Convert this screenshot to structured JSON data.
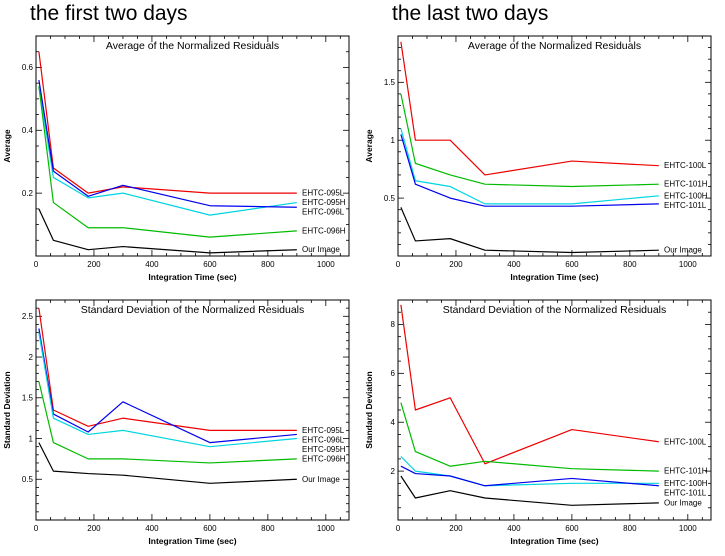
{
  "headers": {
    "left": "the first two days",
    "right": "the last two days"
  },
  "chart_data": [
    {
      "type": "line",
      "title": "Average of the Normalized Residuals",
      "xlabel": "Integration Time (sec)",
      "ylabel": "Average",
      "xlim": [
        0,
        1080
      ],
      "ylim": [
        0,
        0.7
      ],
      "x": [
        10,
        60,
        180,
        300,
        600,
        900
      ],
      "xticks": [
        0,
        200,
        400,
        600,
        800,
        1000
      ],
      "xtick_labels": [
        "0",
        "200",
        "400",
        "600",
        "800",
        "1000"
      ],
      "xminor": 50,
      "yticks": [
        0.2,
        0.4,
        0.6
      ],
      "ytick_labels": [
        "0.2",
        "0.4",
        "0.6"
      ],
      "yminor": 0.05,
      "series": [
        {
          "name": "EHTC-095L",
          "color": "#ee0000",
          "values": [
            0.65,
            0.28,
            0.2,
            0.22,
            0.2,
            0.2
          ]
        },
        {
          "name": "EHTC-095H",
          "color": "#00d5e0",
          "values": [
            0.54,
            0.25,
            0.185,
            0.2,
            0.13,
            0.17
          ]
        },
        {
          "name": "EHTC-096L",
          "color": "#0000ee",
          "values": [
            0.56,
            0.27,
            0.19,
            0.225,
            0.16,
            0.155
          ]
        },
        {
          "name": "EHTC-096H",
          "color": "#00bb00",
          "values": [
            0.54,
            0.17,
            0.09,
            0.09,
            0.06,
            0.08
          ]
        },
        {
          "name": "Our Image",
          "color": "#000000",
          "values": [
            0.15,
            0.05,
            0.02,
            0.03,
            0.01,
            0.02
          ]
        }
      ]
    },
    {
      "type": "line",
      "title": "Average of the Normalized Residuals",
      "xlabel": "Integration Time (sec)",
      "ylabel": "Average",
      "xlim": [
        0,
        1080
      ],
      "ylim": [
        0,
        1.9
      ],
      "x": [
        10,
        60,
        180,
        300,
        600,
        900
      ],
      "xticks": [
        0,
        200,
        400,
        600,
        800,
        1000
      ],
      "xtick_labels": [
        "0",
        "200",
        "400",
        "600",
        "800",
        "1000"
      ],
      "xminor": 50,
      "yticks": [
        0.5,
        1,
        1.5
      ],
      "ytick_labels": [
        "0.5",
        "1",
        "1.5"
      ],
      "yminor": 0.1,
      "series": [
        {
          "name": "EHTC-100L",
          "color": "#ee0000",
          "values": [
            1.85,
            1.0,
            1.0,
            0.7,
            0.82,
            0.78
          ]
        },
        {
          "name": "EHTC-101H",
          "color": "#00bb00",
          "values": [
            1.4,
            0.8,
            0.7,
            0.62,
            0.6,
            0.62
          ]
        },
        {
          "name": "EHTC-100H",
          "color": "#00d5e0",
          "values": [
            1.1,
            0.65,
            0.6,
            0.45,
            0.45,
            0.52
          ]
        },
        {
          "name": "EHTC-101L",
          "color": "#0000ee",
          "values": [
            1.05,
            0.62,
            0.5,
            0.43,
            0.43,
            0.45
          ]
        },
        {
          "name": "Our Image",
          "color": "#000000",
          "values": [
            0.42,
            0.13,
            0.15,
            0.05,
            0.03,
            0.05
          ]
        }
      ]
    },
    {
      "type": "line",
      "title": "Standard Deviation of the Normalized Residuals",
      "xlabel": "Integration Time (sec)",
      "ylabel": "Standard Deviation",
      "xlim": [
        0,
        1080
      ],
      "ylim": [
        0,
        2.7
      ],
      "x": [
        10,
        60,
        180,
        300,
        600,
        900
      ],
      "xticks": [
        0,
        200,
        400,
        600,
        800,
        1000
      ],
      "xtick_labels": [
        "0",
        "200",
        "400",
        "600",
        "800",
        "1000"
      ],
      "xminor": 50,
      "yticks": [
        0.5,
        1,
        1.5,
        2,
        2.5
      ],
      "ytick_labels": [
        "0.5",
        "1",
        "1.5",
        "2",
        "2.5"
      ],
      "yminor": 0.1,
      "series": [
        {
          "name": "EHTC-095L",
          "color": "#ee0000",
          "values": [
            2.6,
            1.35,
            1.15,
            1.25,
            1.1,
            1.1
          ]
        },
        {
          "name": "EHTC-096L",
          "color": "#0000ee",
          "values": [
            2.35,
            1.3,
            1.08,
            1.45,
            0.95,
            1.05
          ]
        },
        {
          "name": "EHTC-095H",
          "color": "#00d5e0",
          "values": [
            2.3,
            1.25,
            1.05,
            1.1,
            0.9,
            1.0
          ]
        },
        {
          "name": "EHTC-096H",
          "color": "#00bb00",
          "values": [
            1.7,
            0.95,
            0.75,
            0.75,
            0.7,
            0.75
          ]
        },
        {
          "name": "Our Image",
          "color": "#000000",
          "values": [
            0.95,
            0.6,
            0.57,
            0.55,
            0.45,
            0.5
          ]
        }
      ]
    },
    {
      "type": "line",
      "title": "Standard Deviation of the Normalized Residuals",
      "xlabel": "Integration Time (sec)",
      "ylabel": "Standard Deviation",
      "xlim": [
        0,
        1080
      ],
      "ylim": [
        0,
        9
      ],
      "x": [
        10,
        60,
        180,
        300,
        600,
        900
      ],
      "xticks": [
        0,
        200,
        400,
        600,
        800,
        1000
      ],
      "xtick_labels": [
        "0",
        "200",
        "400",
        "600",
        "800",
        "1000"
      ],
      "xminor": 50,
      "yticks": [
        2,
        4,
        6,
        8
      ],
      "ytick_labels": [
        "2",
        "4",
        "6",
        "8"
      ],
      "yminor": 0.5,
      "series": [
        {
          "name": "EHTC-100L",
          "color": "#ee0000",
          "values": [
            8.8,
            4.5,
            5.0,
            2.3,
            3.7,
            3.2
          ]
        },
        {
          "name": "EHTC-101H",
          "color": "#00bb00",
          "values": [
            4.8,
            2.8,
            2.2,
            2.4,
            2.1,
            2.0
          ]
        },
        {
          "name": "EHTC-100H",
          "color": "#00d5e0",
          "values": [
            2.6,
            2.0,
            1.8,
            1.4,
            1.5,
            1.5
          ]
        },
        {
          "name": "EHTC-101L",
          "color": "#0000ee",
          "values": [
            2.2,
            1.9,
            1.8,
            1.4,
            1.7,
            1.4
          ]
        },
        {
          "name": "Our Image",
          "color": "#000000",
          "values": [
            1.8,
            0.9,
            1.2,
            0.9,
            0.6,
            0.7
          ]
        }
      ]
    }
  ]
}
